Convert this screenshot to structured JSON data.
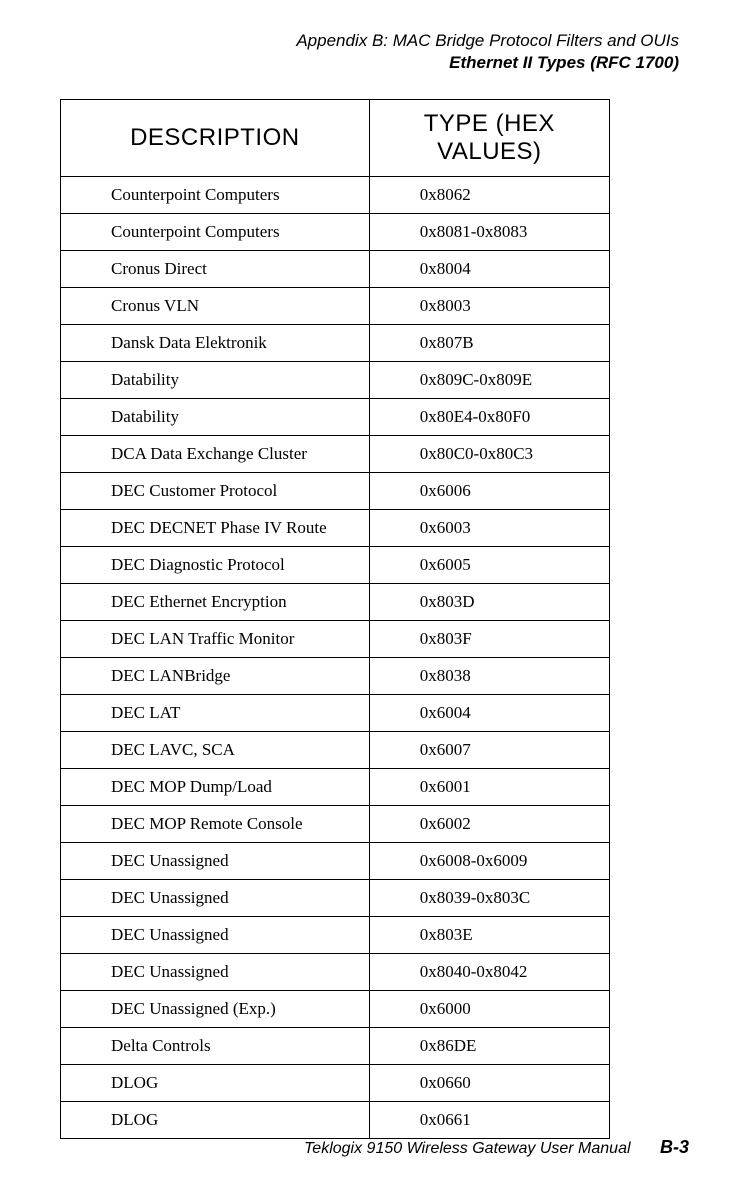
{
  "header": {
    "line1": "Appendix B: MAC Bridge Protocol Filters and OUIs",
    "line2": "Ethernet II Types (RFC 1700)"
  },
  "table": {
    "columns": [
      "DESCRIPTION",
      "TYPE  (HEX  VALUES)"
    ],
    "rows": [
      [
        "Counterpoint Computers",
        "0x8062"
      ],
      [
        "Counterpoint Computers",
        "0x8081-0x8083"
      ],
      [
        "Cronus Direct",
        "0x8004"
      ],
      [
        "Cronus VLN",
        "0x8003"
      ],
      [
        "Dansk Data Elektronik",
        "0x807B"
      ],
      [
        "Datability",
        "0x809C-0x809E"
      ],
      [
        "Datability",
        "0x80E4-0x80F0"
      ],
      [
        "DCA Data Exchange Cluster",
        "0x80C0-0x80C3"
      ],
      [
        "DEC Customer Protocol",
        "0x6006"
      ],
      [
        "DEC DECNET Phase IV Route",
        "0x6003"
      ],
      [
        "DEC Diagnostic Protocol",
        "0x6005"
      ],
      [
        "DEC Ethernet Encryption",
        "0x803D"
      ],
      [
        "DEC LAN Traffic Monitor",
        "0x803F"
      ],
      [
        "DEC LANBridge",
        "0x8038"
      ],
      [
        "DEC LAT",
        "0x6004"
      ],
      [
        "DEC LAVC, SCA",
        "0x6007"
      ],
      [
        "DEC MOP Dump/Load",
        "0x6001"
      ],
      [
        "DEC MOP Remote Console",
        "0x6002"
      ],
      [
        "DEC Unassigned",
        "0x6008-0x6009"
      ],
      [
        "DEC Unassigned",
        "0x8039-0x803C"
      ],
      [
        "DEC Unassigned",
        "0x803E"
      ],
      [
        "DEC Unassigned",
        "0x8040-0x8042"
      ],
      [
        "DEC Unassigned (Exp.)",
        "0x6000"
      ],
      [
        "Delta Controls",
        "0x86DE"
      ],
      [
        "DLOG",
        "0x0660"
      ],
      [
        "DLOG",
        "0x0661"
      ]
    ]
  },
  "footer": {
    "text": "Teklogix 9150 Wireless Gateway User Manual",
    "page": "B-3"
  }
}
